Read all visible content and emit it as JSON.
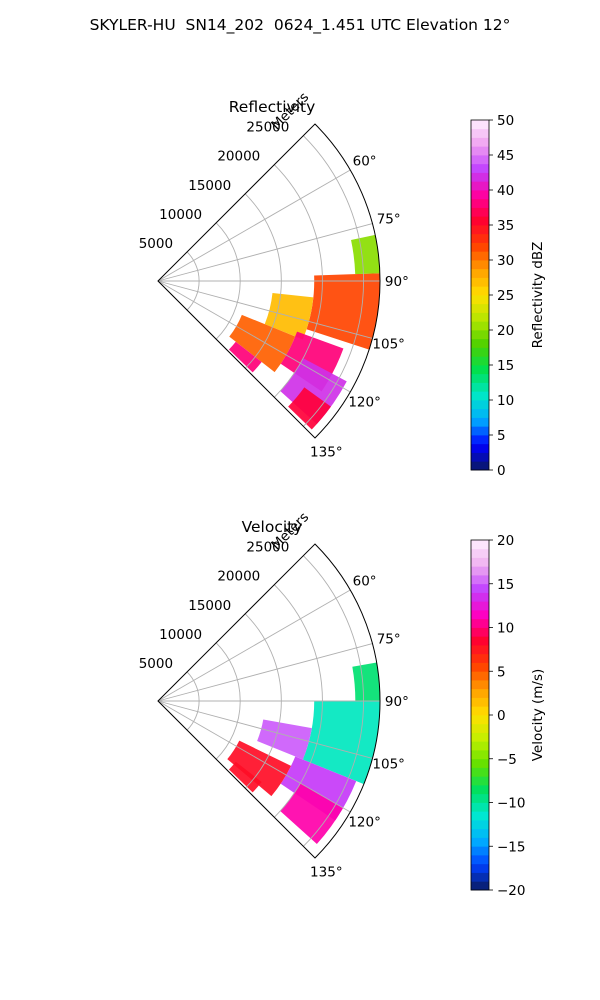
{
  "title": "SKYLER-HU  SN14_202  0624_1.451 UTC Elevation 12°",
  "chart_data": [
    {
      "type": "heatmap",
      "subtype": "polar-sector (radar PPI)",
      "title": "Reflectivity",
      "radial_axis_label": "Meters",
      "radial_ticks": [
        "5000",
        "10000",
        "15000",
        "20000",
        "25000"
      ],
      "rmax": 27000,
      "angle_ticks": [
        "60°",
        "75°",
        "90°",
        "105°",
        "120°",
        "135°"
      ],
      "theta_range_deg": [
        45,
        135
      ],
      "grid": true,
      "colorbar": {
        "label": "Reflectivity dBZ",
        "range": [
          0,
          50
        ],
        "ticks": [
          "0",
          "5",
          "10",
          "15",
          "20",
          "25",
          "30",
          "35",
          "40",
          "45",
          "50"
        ],
        "colors": [
          "#0a1a60",
          "#0000ff",
          "#00aaff",
          "#00e6c8",
          "#00e050",
          "#4cd000",
          "#b4e600",
          "#ffe000",
          "#ffa000",
          "#ff4000",
          "#ff0030",
          "#ff00a0",
          "#c040ff",
          "#f0a0f0",
          "#fff0ff"
        ]
      },
      "echo_regions": [
        {
          "r": [
            19000,
            27000
          ],
          "theta": [
            88,
            108
          ],
          "value": 32
        },
        {
          "r": [
            14000,
            19000
          ],
          "theta": [
            96,
            112
          ],
          "value": 27
        },
        {
          "r": [
            18000,
            24000
          ],
          "theta": [
            110,
            124
          ],
          "value": 38
        },
        {
          "r": [
            20000,
            26000
          ],
          "theta": [
            118,
            132
          ],
          "value": 42
        },
        {
          "r": [
            11000,
            18000
          ],
          "theta": [
            112,
            128
          ],
          "value": 31
        },
        {
          "r": [
            24000,
            27000
          ],
          "theta": [
            78,
            88
          ],
          "value": 20
        },
        {
          "r": [
            22000,
            26000
          ],
          "theta": [
            126,
            134
          ],
          "value": 36
        },
        {
          "r": [
            12000,
            16000
          ],
          "theta": [
            128,
            134
          ],
          "value": 38
        }
      ]
    },
    {
      "type": "heatmap",
      "subtype": "polar-sector (radar PPI)",
      "title": "Velocity",
      "radial_axis_label": "Meters",
      "radial_ticks": [
        "5000",
        "10000",
        "15000",
        "20000",
        "25000"
      ],
      "rmax": 27000,
      "angle_ticks": [
        "60°",
        "75°",
        "90°",
        "105°",
        "120°",
        "135°"
      ],
      "theta_range_deg": [
        45,
        135
      ],
      "grid": true,
      "colorbar": {
        "label": "Velocity (m/s)",
        "range": [
          -20,
          20
        ],
        "ticks": [
          "−20",
          "−15",
          "−10",
          "−5",
          "0",
          "5",
          "10",
          "15",
          "20"
        ],
        "colors": [
          "#0a1a60",
          "#0040ff",
          "#00b0ff",
          "#00e8d0",
          "#00e060",
          "#60e000",
          "#c0f000",
          "#ffe000",
          "#ffa000",
          "#ff4000",
          "#ff0030",
          "#ff00c0",
          "#c040ff",
          "#f0b0f0",
          "#fff0ff"
        ]
      },
      "echo_regions": [
        {
          "r": [
            19000,
            27000
          ],
          "theta": [
            90,
            112
          ],
          "value": -11
        },
        {
          "r": [
            13000,
            19000
          ],
          "theta": [
            100,
            112
          ],
          "value": 15
        },
        {
          "r": [
            18000,
            26000
          ],
          "theta": [
            112,
            124
          ],
          "value": 14
        },
        {
          "r": [
            20000,
            26000
          ],
          "theta": [
            120,
            132
          ],
          "value": 11
        },
        {
          "r": [
            11000,
            18000
          ],
          "theta": [
            116,
            130
          ],
          "value": 8
        },
        {
          "r": [
            24000,
            27000
          ],
          "theta": [
            80,
            90
          ],
          "value": -9
        },
        {
          "r": [
            12000,
            16000
          ],
          "theta": [
            128,
            134
          ],
          "value": 8
        }
      ]
    }
  ]
}
